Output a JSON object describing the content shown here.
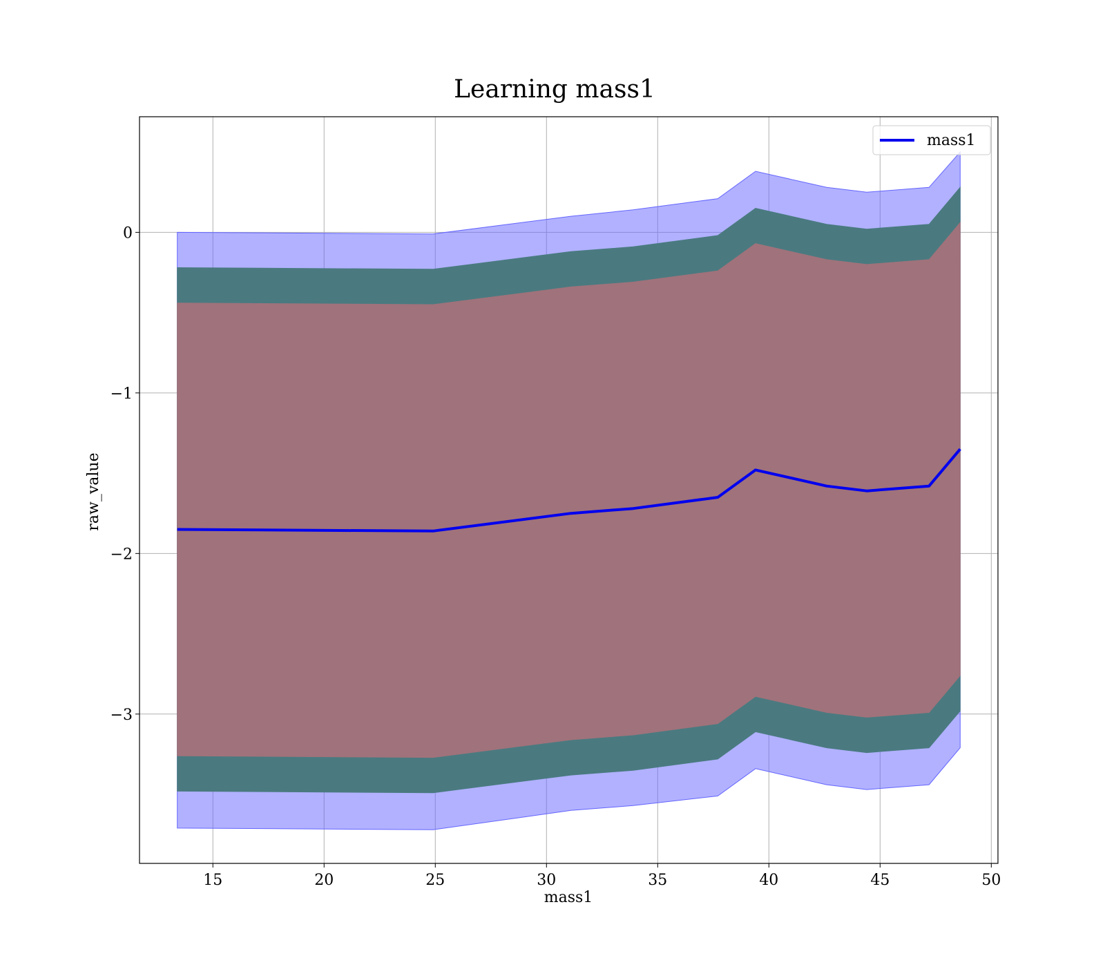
{
  "chart_data": {
    "type": "line",
    "title": "Learning mass1",
    "xlabel": "mass1",
    "ylabel": "raw_value",
    "xlim": [
      11.7,
      50.3
    ],
    "ylim": [
      -3.93,
      0.72
    ],
    "grid": true,
    "legend_position": "top-right",
    "xticks": [
      15,
      20,
      25,
      30,
      35,
      40,
      45,
      50
    ],
    "xtick_labels": [
      "15",
      "20",
      "25",
      "30",
      "35",
      "40",
      "45",
      "50"
    ],
    "yticks": [
      0,
      -1,
      -2,
      -3
    ],
    "ytick_labels": [
      "0",
      "−1",
      "−2",
      "−3"
    ],
    "x": [
      13.4,
      24.9,
      31.1,
      33.9,
      37.7,
      39.4,
      42.6,
      44.4,
      47.2,
      48.6
    ],
    "series": [
      {
        "name": "mass1",
        "color": "#0000ee",
        "values": [
          -1.85,
          -1.86,
          -1.75,
          -1.72,
          -1.65,
          -1.48,
          -1.58,
          -1.61,
          -1.58,
          -1.35
        ]
      }
    ],
    "bands": [
      {
        "kind": "outer",
        "color": "#6464ff",
        "upper": [
          0.0,
          -0.01,
          0.1,
          0.14,
          0.21,
          0.38,
          0.28,
          0.25,
          0.28,
          0.5
        ],
        "lower": [
          -3.71,
          -3.72,
          -3.6,
          -3.57,
          -3.51,
          -3.34,
          -3.44,
          -3.47,
          -3.44,
          -3.21
        ]
      },
      {
        "kind": "middle",
        "color": "#4a7a80",
        "upper": [
          -0.22,
          -0.23,
          -0.12,
          -0.09,
          -0.02,
          0.15,
          0.05,
          0.02,
          0.05,
          0.28
        ],
        "lower": [
          -3.48,
          -3.49,
          -3.38,
          -3.35,
          -3.28,
          -3.11,
          -3.21,
          -3.24,
          -3.21,
          -2.98
        ]
      },
      {
        "kind": "inner",
        "color": "#a0727b",
        "upper": [
          -0.44,
          -0.45,
          -0.34,
          -0.31,
          -0.24,
          -0.07,
          -0.17,
          -0.2,
          -0.17,
          0.06
        ],
        "lower": [
          -3.26,
          -3.27,
          -3.16,
          -3.13,
          -3.06,
          -2.89,
          -2.99,
          -3.02,
          -2.99,
          -2.76
        ]
      }
    ]
  }
}
